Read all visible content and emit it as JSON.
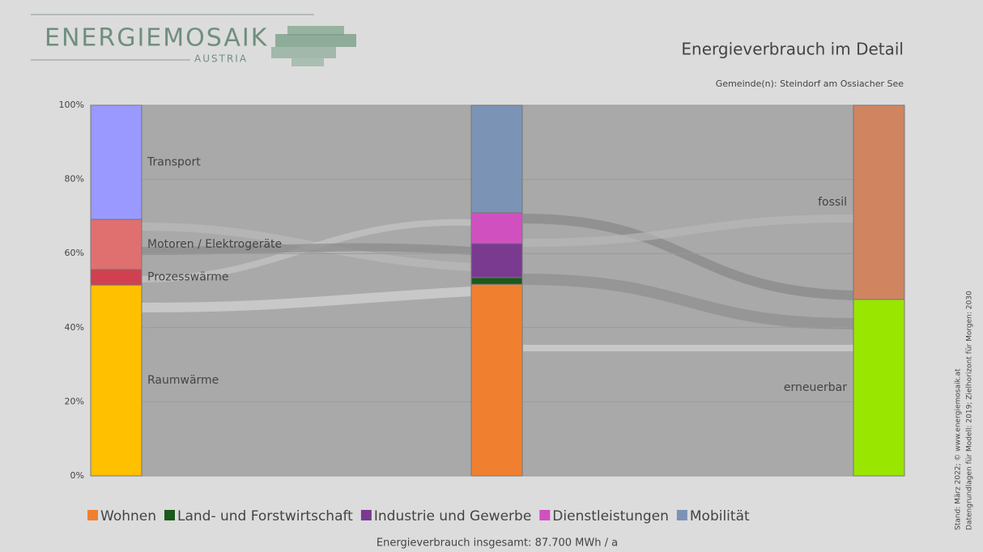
{
  "logo": {
    "name": "ENERGIEMOSAIK",
    "country": "AUSTRIA"
  },
  "side_note": [
    "Stand: März 2022; © www.energiemosaik.at",
    "Datengrundlagen für Modell: 2019; Zielhorizont für Morgen: 2030"
  ],
  "chart_data": {
    "type": "stacked-columns",
    "title": "Energieverbrauch im Detail",
    "subtitle": "Gemeinde(n): Steindorf am Ossiacher See",
    "footer": "Energieverbrauch insgesamt: 87.700 MWh / a",
    "ylim": [
      0,
      100
    ],
    "yticks": [
      {
        "value": 0,
        "label": "0%"
      },
      {
        "value": 20,
        "label": "20%"
      },
      {
        "value": 40,
        "label": "40%"
      },
      {
        "value": 60,
        "label": "60%"
      },
      {
        "value": 80,
        "label": "80%"
      },
      {
        "value": 100,
        "label": "100%"
      }
    ],
    "grid": true,
    "columns": [
      {
        "names": [
          "Raumwärme",
          "Prozesswärme",
          "Motoren / Elektrogeräte",
          "Transport"
        ],
        "values": [
          51.5,
          4.2,
          13.5,
          30.8
        ],
        "colors": [
          "#ffc000",
          "#d04050",
          "#e07070",
          "#9999ff"
        ],
        "labels": "right"
      },
      {
        "names": [
          "Wohnen",
          "Land- und Forstwirtschaft",
          "Industrie und Gewerbe",
          "Dienstleistungen",
          "Mobilität"
        ],
        "values": [
          51.7,
          1.8,
          9.2,
          8.3,
          29.0
        ],
        "colors": [
          "#f08030",
          "#1a5a1a",
          "#7a3a90",
          "#d050c0",
          "#7b93b5"
        ],
        "labels": "legend"
      },
      {
        "names": [
          "erneuerbar",
          "fossil"
        ],
        "values": [
          47.6,
          52.4
        ],
        "colors": [
          "#99e600",
          "#d08560"
        ],
        "labels": "left"
      }
    ]
  }
}
